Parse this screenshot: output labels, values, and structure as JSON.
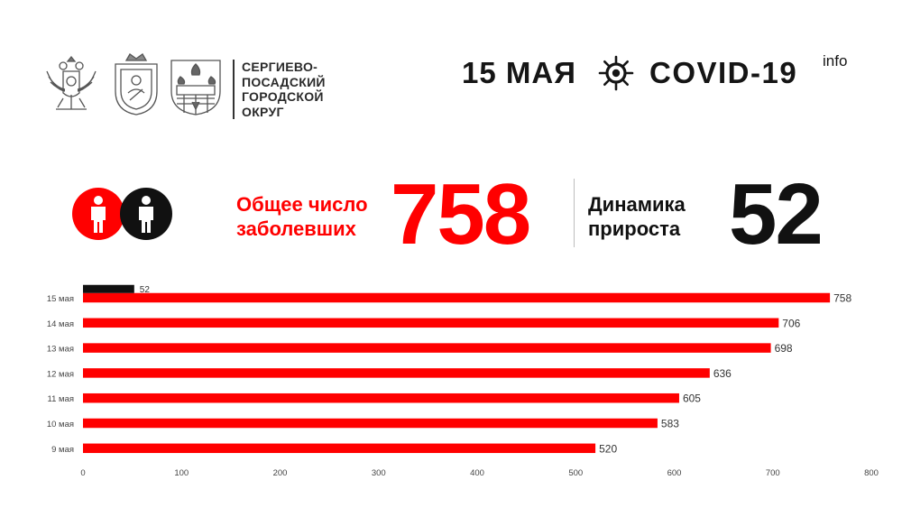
{
  "header": {
    "municipality_lines": [
      "СЕРГИЕВО-",
      "ПОСАДСКИЙ",
      "ГОРОДСКОЙ",
      "ОКРУГ"
    ],
    "date": "15 МАЯ",
    "covid_title": "COVID-19",
    "covid_suffix": "info",
    "emblems": [
      "russian-eagle-emblem",
      "moscow-region-emblem",
      "sergiev-posad-emblem"
    ]
  },
  "stats": {
    "total_label_line1": "Общее число",
    "total_label_line2": "заболевших",
    "total_value": "758",
    "growth_label_line1": "Динамика",
    "growth_label_line2": "прироста",
    "growth_value": "52"
  },
  "colors": {
    "accent_red": "#ff0000",
    "dark": "#111111"
  },
  "chart_data": {
    "type": "bar",
    "orientation": "horizontal",
    "categories": [
      "15 мая",
      "14 мая",
      "13 мая",
      "12 мая",
      "11 мая",
      "10 мая",
      "9 мая"
    ],
    "series": [
      {
        "values": [
          758,
          706,
          698,
          636,
          605,
          583,
          520
        ],
        "color": "#ff0000"
      },
      {
        "values": [
          52,
          null,
          null,
          null,
          null,
          null,
          null
        ],
        "color": "#111111"
      }
    ],
    "xlim": [
      0,
      800
    ],
    "xticks": [
      0,
      100,
      200,
      300,
      400,
      500,
      600,
      700,
      800
    ],
    "grid": false
  }
}
